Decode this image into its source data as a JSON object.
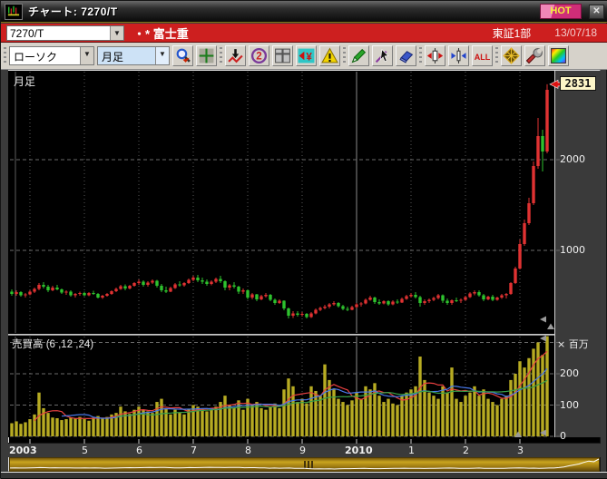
{
  "window": {
    "title": "チャート: 7270/T",
    "hot_label": "HOT",
    "close_label": "✕"
  },
  "symbol_bar": {
    "symbol": "7270/T",
    "marker": "・*",
    "name": "富士重",
    "market": "東証1部",
    "date": "13/07/18"
  },
  "toolbar": {
    "chart_type": "ローソク",
    "period": "月足",
    "show_all_label": "ALL",
    "icon_groups": [
      [
        "zoom-icon",
        "trend-grid-icon"
      ],
      [
        "save-chart-icon",
        "compare-chart-icon",
        "multi-window-icon",
        "price-flag-icon",
        "alert-icon"
      ],
      [
        "pencil-icon",
        "cursor-icon",
        "eraser-icon"
      ],
      [
        "bar-expand-icon",
        "bar-shrink-icon",
        "show-all-button"
      ],
      [
        "pattern-icon",
        "wrench-icon",
        "palette-icon"
      ]
    ]
  },
  "price_pane": {
    "label": "月足",
    "callout_value": "2831",
    "axis_ticks": [
      {
        "label": "2000",
        "price": 2000
      },
      {
        "label": "1000",
        "price": 1000
      }
    ]
  },
  "volume_pane": {
    "label": "売買高 (6 ,12 ,24)",
    "unit_label": "× 百万",
    "axis_ticks": [
      {
        "label": "200",
        "value": 200
      },
      {
        "label": "100",
        "value": 100
      },
      {
        "label": "0",
        "value": 0
      }
    ]
  },
  "x_axis": {
    "start_label": "2003",
    "year_labels": [
      "5",
      "6",
      "7",
      "8",
      "9",
      "2010",
      "1",
      "2",
      "3"
    ],
    "bold_labels": [
      "2003",
      "2010"
    ]
  },
  "chart_data": {
    "type": "candlestick",
    "period": "monthly",
    "symbol": "7270/T",
    "start_month": "2003-09",
    "last_price": 2831,
    "price_gridlines": [
      1000,
      2000
    ],
    "volume_gridlines_millions": [
      0,
      100,
      200,
      300
    ],
    "volume_unit": "millions",
    "volume_ma_periods": [
      6,
      12,
      24
    ],
    "colors": {
      "up": "#e03232",
      "down": "#2ec22e",
      "volume_bar": "#b7ab22",
      "ma6": "#e84040",
      "ma12": "#4878e8",
      "ma24": "#38a048",
      "grid": "#6a6a6a",
      "grid_solid": "#8a8a8a",
      "callout_bg": "#fdf6c8",
      "nav_line": "#ffffff"
    },
    "candles_ohlc": [
      [
        545,
        570,
        500,
        520
      ],
      [
        520,
        560,
        500,
        540
      ],
      [
        540,
        550,
        490,
        505
      ],
      [
        505,
        530,
        480,
        515
      ],
      [
        515,
        560,
        505,
        545
      ],
      [
        545,
        590,
        530,
        575
      ],
      [
        575,
        640,
        560,
        620
      ],
      [
        620,
        650,
        580,
        600
      ],
      [
        600,
        620,
        540,
        560
      ],
      [
        560,
        610,
        550,
        590
      ],
      [
        590,
        620,
        560,
        570
      ],
      [
        570,
        580,
        520,
        535
      ],
      [
        535,
        560,
        510,
        545
      ],
      [
        545,
        560,
        490,
        505
      ],
      [
        505,
        530,
        480,
        520
      ],
      [
        520,
        545,
        500,
        530
      ],
      [
        530,
        545,
        495,
        505
      ],
      [
        505,
        540,
        495,
        530
      ],
      [
        530,
        555,
        510,
        520
      ],
      [
        520,
        530,
        470,
        480
      ],
      [
        480,
        510,
        465,
        500
      ],
      [
        500,
        530,
        490,
        520
      ],
      [
        520,
        560,
        510,
        550
      ],
      [
        550,
        590,
        540,
        575
      ],
      [
        575,
        620,
        565,
        605
      ],
      [
        605,
        625,
        560,
        580
      ],
      [
        580,
        620,
        570,
        610
      ],
      [
        610,
        650,
        600,
        640
      ],
      [
        640,
        680,
        620,
        655
      ],
      [
        655,
        670,
        600,
        620
      ],
      [
        620,
        660,
        600,
        645
      ],
      [
        645,
        680,
        630,
        665
      ],
      [
        665,
        675,
        590,
        610
      ],
      [
        610,
        630,
        540,
        560
      ],
      [
        560,
        600,
        530,
        545
      ],
      [
        545,
        600,
        540,
        585
      ],
      [
        585,
        640,
        575,
        625
      ],
      [
        625,
        660,
        600,
        615
      ],
      [
        615,
        650,
        600,
        640
      ],
      [
        640,
        690,
        630,
        675
      ],
      [
        675,
        720,
        660,
        700
      ],
      [
        700,
        730,
        650,
        670
      ],
      [
        670,
        700,
        630,
        655
      ],
      [
        655,
        680,
        610,
        630
      ],
      [
        630,
        670,
        615,
        655
      ],
      [
        655,
        700,
        640,
        685
      ],
      [
        685,
        720,
        640,
        660
      ],
      [
        660,
        670,
        560,
        590
      ],
      [
        590,
        630,
        560,
        615
      ],
      [
        615,
        650,
        580,
        600
      ],
      [
        600,
        610,
        520,
        545
      ],
      [
        545,
        580,
        520,
        560
      ],
      [
        560,
        570,
        460,
        480
      ],
      [
        480,
        530,
        460,
        515
      ],
      [
        515,
        520,
        440,
        460
      ],
      [
        460,
        510,
        450,
        495
      ],
      [
        495,
        530,
        480,
        510
      ],
      [
        510,
        520,
        440,
        455
      ],
      [
        455,
        470,
        400,
        420
      ],
      [
        420,
        460,
        410,
        445
      ],
      [
        445,
        450,
        340,
        360
      ],
      [
        360,
        370,
        250,
        280
      ],
      [
        280,
        330,
        255,
        305
      ],
      [
        305,
        330,
        270,
        290
      ],
      [
        290,
        320,
        270,
        300
      ],
      [
        300,
        310,
        250,
        265
      ],
      [
        265,
        320,
        255,
        305
      ],
      [
        305,
        360,
        295,
        345
      ],
      [
        345,
        380,
        330,
        365
      ],
      [
        365,
        400,
        350,
        380
      ],
      [
        380,
        420,
        360,
        405
      ],
      [
        405,
        440,
        390,
        420
      ],
      [
        420,
        430,
        370,
        385
      ],
      [
        385,
        400,
        340,
        355
      ],
      [
        355,
        380,
        330,
        345
      ],
      [
        345,
        390,
        340,
        375
      ],
      [
        375,
        420,
        365,
        405
      ],
      [
        405,
        430,
        380,
        415
      ],
      [
        415,
        470,
        405,
        455
      ],
      [
        455,
        500,
        445,
        480
      ],
      [
        480,
        490,
        410,
        430
      ],
      [
        430,
        460,
        400,
        415
      ],
      [
        415,
        450,
        405,
        440
      ],
      [
        440,
        450,
        390,
        405
      ],
      [
        405,
        450,
        395,
        435
      ],
      [
        435,
        460,
        410,
        425
      ],
      [
        425,
        480,
        420,
        465
      ],
      [
        465,
        510,
        455,
        495
      ],
      [
        495,
        530,
        480,
        510
      ],
      [
        510,
        540,
        470,
        485
      ],
      [
        485,
        500,
        380,
        420
      ],
      [
        420,
        460,
        400,
        440
      ],
      [
        440,
        470,
        420,
        455
      ],
      [
        455,
        490,
        440,
        475
      ],
      [
        475,
        520,
        460,
        505
      ],
      [
        505,
        515,
        420,
        445
      ],
      [
        445,
        470,
        400,
        420
      ],
      [
        420,
        460,
        400,
        450
      ],
      [
        450,
        480,
        430,
        445
      ],
      [
        445,
        470,
        420,
        455
      ],
      [
        455,
        500,
        445,
        485
      ],
      [
        485,
        540,
        475,
        525
      ],
      [
        525,
        560,
        505,
        540
      ],
      [
        540,
        560,
        490,
        505
      ],
      [
        505,
        520,
        440,
        460
      ],
      [
        460,
        500,
        450,
        490
      ],
      [
        490,
        510,
        440,
        455
      ],
      [
        455,
        490,
        445,
        480
      ],
      [
        480,
        520,
        465,
        505
      ],
      [
        505,
        530,
        470,
        520
      ],
      [
        520,
        650,
        510,
        640
      ],
      [
        640,
        820,
        630,
        800
      ],
      [
        800,
        1120,
        790,
        1070
      ],
      [
        1070,
        1340,
        1050,
        1300
      ],
      [
        1300,
        1580,
        1280,
        1520
      ],
      [
        1520,
        1980,
        1500,
        1930
      ],
      [
        1930,
        2460,
        1900,
        2260
      ],
      [
        2260,
        2330,
        1870,
        2090
      ],
      [
        2090,
        2831,
        2070,
        2770
      ]
    ],
    "volumes_millions": [
      42,
      48,
      40,
      45,
      55,
      70,
      140,
      90,
      75,
      60,
      58,
      52,
      55,
      60,
      58,
      62,
      55,
      50,
      60,
      65,
      58,
      62,
      70,
      75,
      95,
      80,
      72,
      85,
      95,
      85,
      80,
      75,
      110,
      120,
      90,
      70,
      85,
      75,
      70,
      88,
      100,
      95,
      90,
      80,
      85,
      95,
      110,
      130,
      100,
      90,
      115,
      85,
      120,
      100,
      110,
      90,
      85,
      95,
      105,
      90,
      150,
      185,
      160,
      110,
      120,
      105,
      160,
      145,
      130,
      230,
      180,
      150,
      120,
      110,
      100,
      115,
      140,
      120,
      160,
      150,
      170,
      130,
      110,
      120,
      105,
      100,
      130,
      140,
      150,
      160,
      255,
      180,
      140,
      130,
      120,
      160,
      140,
      220,
      120,
      110,
      130,
      140,
      160,
      130,
      150,
      120,
      110,
      100,
      120,
      130,
      180,
      200,
      240,
      220,
      250,
      280,
      300,
      260,
      320
    ]
  }
}
